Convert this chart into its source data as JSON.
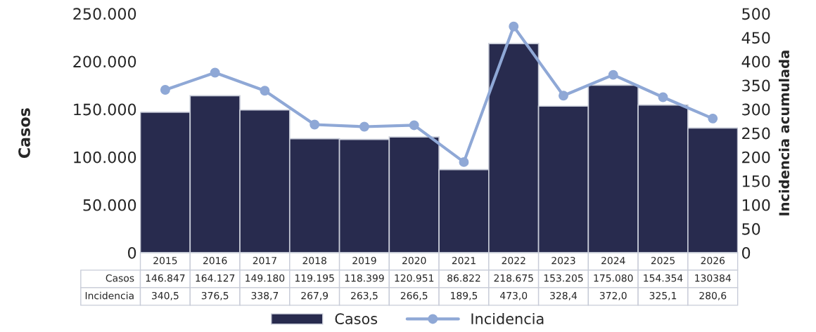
{
  "chart_data": {
    "type": "bar",
    "categories": [
      "2015",
      "2016",
      "2017",
      "2018",
      "2019",
      "2020",
      "2021",
      "2022",
      "2023",
      "2024",
      "2025",
      "2026"
    ],
    "series": [
      {
        "name": "Casos",
        "color": "#282b4e",
        "values": [
          146847,
          164127,
          149180,
          119195,
          118399,
          120951,
          86822,
          218675,
          153205,
          175080,
          154354,
          130384
        ],
        "value_labels": [
          "146.847",
          "164.127",
          "149.180",
          "119.195",
          "118.399",
          "120.951",
          "86.822",
          "218.675",
          "153.205",
          "175.080",
          "154.354",
          "130384"
        ]
      },
      {
        "name": "Incidencia",
        "type": "line",
        "axis": "y2",
        "color": "#8fa8d6",
        "marker": "circle",
        "values": [
          340.5,
          376.5,
          338.7,
          267.9,
          263.5,
          266.5,
          189.5,
          473.0,
          328.4,
          372.0,
          325.1,
          280.6
        ],
        "value_labels": [
          "340,5",
          "376,5",
          "338,7",
          "267,9",
          "263,5",
          "266,5",
          "189,5",
          "473,0",
          "328,4",
          "372,0",
          "325,1",
          "280,6"
        ]
      }
    ],
    "ylabel": "Casos",
    "y2label": "Incidencia acumulada",
    "ylim": [
      0,
      250000
    ],
    "yticks": [
      {
        "value": 0,
        "label": "0"
      },
      {
        "value": 50000,
        "label": "50.000"
      },
      {
        "value": 100000,
        "label": "100.000"
      },
      {
        "value": 150000,
        "label": "150.000"
      },
      {
        "value": 200000,
        "label": "200.000"
      },
      {
        "value": 250000,
        "label": "250.000"
      }
    ],
    "y2lim": [
      0,
      500
    ],
    "y2ticks": [
      0,
      50,
      100,
      150,
      200,
      250,
      300,
      350,
      400,
      450,
      500
    ],
    "legend": "bottom",
    "grid": false
  }
}
